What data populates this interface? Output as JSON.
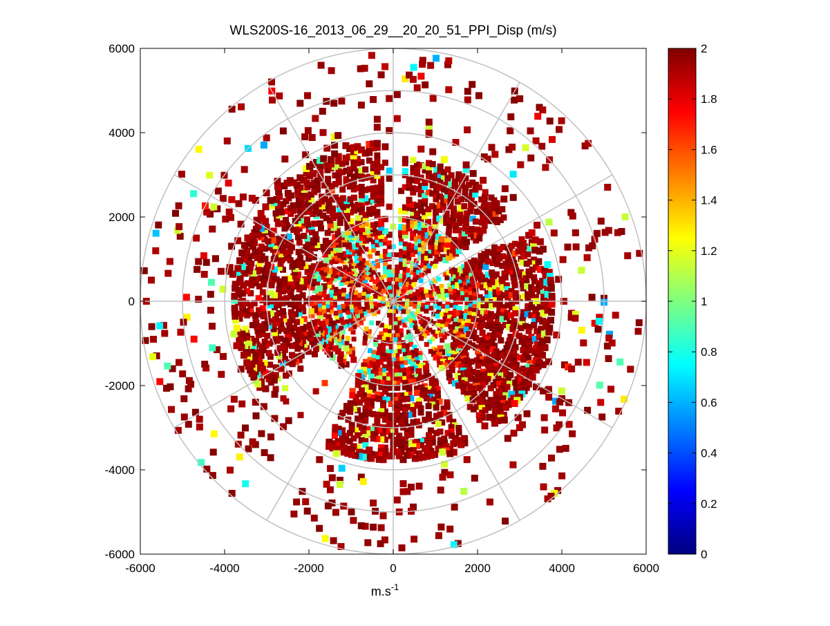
{
  "chart_data": {
    "type": "heatmap",
    "subtype": "polar-ppi-scan",
    "title": "WLS200S-16_2013_06_29__20_20_51_PPI_Disp (m/s)",
    "xlabel": "m.s",
    "xlabel_superscript": "-1",
    "ylabel": "",
    "xlim": [
      -6000,
      6000
    ],
    "ylim": [
      -6000,
      6000
    ],
    "x_ticks": [
      -6000,
      -4000,
      -2000,
      0,
      2000,
      4000,
      6000
    ],
    "y_ticks": [
      -6000,
      -4000,
      -2000,
      0,
      2000,
      4000,
      6000
    ],
    "x_tick_labels": [
      "-6000",
      "-4000",
      "-2000",
      "0",
      "2000",
      "4000",
      "6000"
    ],
    "y_tick_labels": [
      "-6000",
      "-4000",
      "-2000",
      "0",
      "2000",
      "4000",
      "6000"
    ],
    "polar_grid": {
      "range_rings": [
        1000,
        2000,
        3000,
        4000,
        5000,
        6000
      ],
      "radial_spokes_deg": [
        0,
        30,
        60,
        90,
        120,
        150,
        180,
        210,
        240,
        270,
        300,
        330
      ],
      "grid_color": "#c0c0c0"
    },
    "colorbar": {
      "min": 0,
      "max": 2,
      "ticks": [
        0,
        0.2,
        0.4,
        0.6,
        0.8,
        1,
        1.2,
        1.4,
        1.6,
        1.8,
        2
      ],
      "tick_labels": [
        "0",
        "0.2",
        "0.4",
        "0.6",
        "0.8",
        "1",
        "1.2",
        "1.4",
        "1.6",
        "1.8",
        "2"
      ],
      "colormap": "jet"
    },
    "field_description": {
      "dense_sectors": [
        {
          "az_from": 235,
          "az_to": 355,
          "max_range": 3800
        },
        {
          "az_from": 5,
          "az_to": 55,
          "max_range": 3400
        },
        {
          "az_from": 60,
          "az_to": 145,
          "max_range": 3800
        },
        {
          "az_from": 150,
          "az_to": 205,
          "max_range": 3800
        }
      ],
      "gap_azimuths_deg": [
        58,
        148,
        210
      ],
      "inner_mixed_radius": 2000,
      "outer_sparse_max": 6000
    }
  }
}
